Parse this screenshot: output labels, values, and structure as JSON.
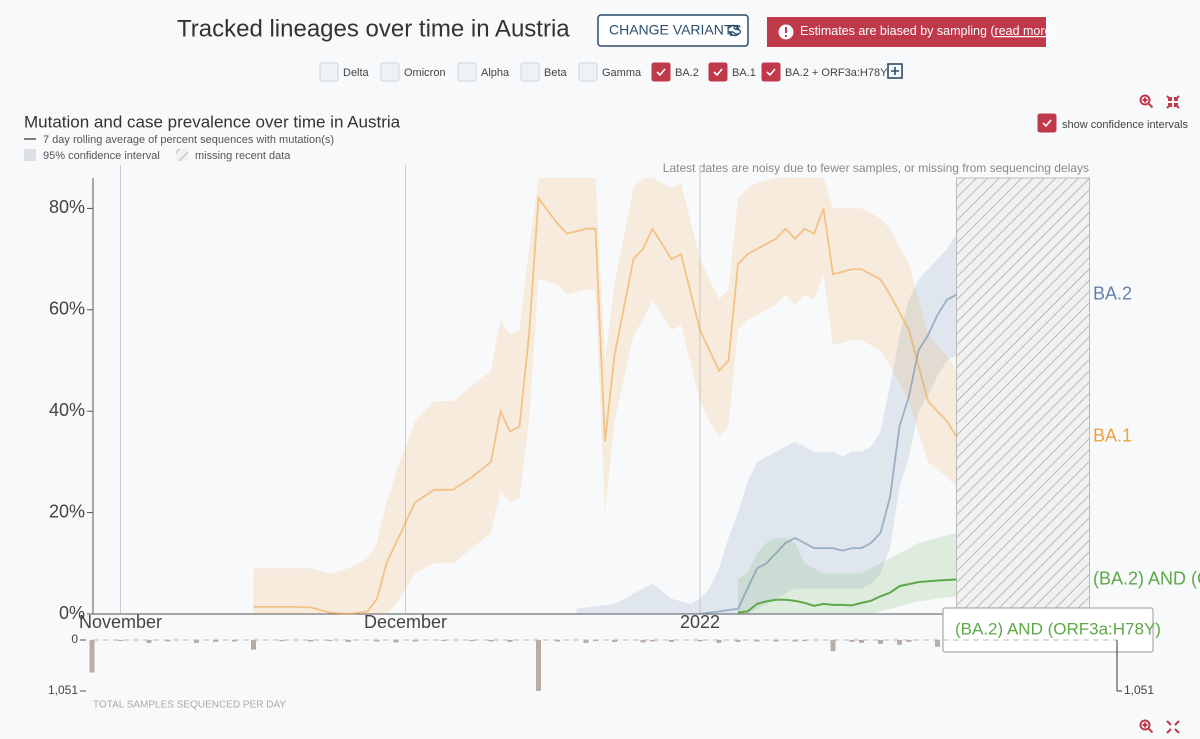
{
  "header": {
    "title": "Tracked lineages over time in Austria",
    "change_button": "CHANGE VARIANTS",
    "alert": {
      "text": "Estimates are biased by sampling (",
      "link": "read more",
      "close": ")"
    }
  },
  "variants": [
    {
      "label": "Delta",
      "checked": false
    },
    {
      "label": "Omicron",
      "checked": false
    },
    {
      "label": "Alpha",
      "checked": false
    },
    {
      "label": "Beta",
      "checked": false
    },
    {
      "label": "Gamma",
      "checked": false
    },
    {
      "label": "BA.2",
      "checked": true
    },
    {
      "label": "BA.1",
      "checked": true
    },
    {
      "label": "BA.2 + ORF3a:H78Y",
      "checked": true
    }
  ],
  "chart_data": [
    {
      "type": "line",
      "title": "Mutation and case prevalence over time in Austria",
      "legend": {
        "line": "7 day rolling average of percent sequences with mutation(s)",
        "band": "95% confidence interval",
        "missing": "missing recent data"
      },
      "annotation": "Latest dates are noisy due to fewer samples, or missing from sequencing delays",
      "show_ci": true,
      "show_ci_label": "show confidence intervals",
      "xlim": [
        -3,
        102
      ],
      "xticks": [
        {
          "value": 0,
          "label": "November"
        },
        {
          "value": 30,
          "label": "December"
        },
        {
          "value": 61,
          "label": "2022"
        }
      ],
      "ylim": [
        0,
        86
      ],
      "yticks": [
        {
          "value": 0,
          "label": "0%"
        },
        {
          "value": 20,
          "label": "20%"
        },
        {
          "value": 40,
          "label": "40%"
        },
        {
          "value": 60,
          "label": "60%"
        },
        {
          "value": 80,
          "label": "80%"
        }
      ],
      "series": [
        {
          "name": "BA.2",
          "color": "#6482a8",
          "x": [
            48,
            50,
            52,
            54,
            56,
            58,
            60,
            61,
            62,
            63,
            64,
            65,
            66,
            67,
            68,
            70,
            71,
            72,
            73,
            75,
            76,
            77,
            78,
            79,
            80,
            81,
            82,
            83,
            84,
            85,
            86,
            87,
            88
          ],
          "values": [
            null,
            null,
            null,
            null,
            null,
            null,
            null,
            0,
            0.3,
            0.5,
            0.8,
            1,
            5,
            9,
            10,
            14,
            15,
            14,
            13,
            13,
            12.5,
            13,
            13,
            14,
            16,
            23,
            37,
            43,
            52,
            55,
            59,
            62,
            63
          ],
          "ci_lower": [
            0,
            0,
            0,
            0,
            0,
            0,
            0,
            0,
            0,
            0,
            0,
            0,
            0,
            1,
            2,
            4,
            5,
            5,
            5,
            5,
            5,
            5,
            5,
            6,
            8,
            13,
            25,
            31,
            40,
            43,
            47,
            50,
            51
          ],
          "ci_upper": [
            1,
            1.5,
            2,
            4,
            6,
            3,
            2,
            3,
            5,
            9,
            15,
            20,
            26,
            30,
            31,
            33,
            34,
            33,
            32,
            32,
            31,
            32,
            32,
            33,
            36,
            45,
            55,
            62,
            66,
            68,
            70,
            72,
            75
          ]
        },
        {
          "name": "BA.1",
          "color": "#f0a040",
          "x": [
            14,
            16,
            18,
            20,
            22,
            24,
            26,
            27,
            28,
            29,
            30,
            31,
            33,
            35,
            37,
            39,
            40,
            41,
            42,
            43,
            44,
            46,
            47,
            49,
            50,
            51,
            52,
            54,
            55,
            56,
            58,
            59,
            61,
            62,
            63,
            64,
            65,
            66,
            67,
            69,
            70,
            71,
            72,
            73,
            74,
            75,
            77,
            78,
            80,
            81,
            83,
            84,
            85,
            87,
            88
          ],
          "values": [
            1.4,
            1.4,
            1.4,
            1.3,
            0.3,
            0,
            0.5,
            3,
            10,
            14,
            18,
            22,
            24.5,
            24.5,
            27,
            30,
            40,
            36,
            37,
            55,
            82,
            77,
            75,
            76,
            76,
            34,
            51,
            70,
            72,
            76,
            70,
            71,
            56,
            52,
            48,
            50,
            69,
            71,
            72,
            74,
            76,
            74,
            76,
            75,
            80,
            67,
            68,
            68,
            66,
            63,
            56,
            49,
            42,
            38,
            35
          ],
          "ci_lower": [
            0,
            0,
            0,
            0,
            0,
            0,
            0,
            0,
            0,
            2,
            5,
            8,
            10,
            10,
            13,
            16,
            24,
            22,
            23,
            38,
            66,
            65,
            63,
            64,
            64,
            20,
            38,
            55,
            58,
            62,
            56,
            57,
            42,
            38,
            35,
            37,
            56,
            58,
            59,
            61,
            63,
            61,
            63,
            62,
            67,
            53,
            54,
            54,
            52,
            49,
            42,
            36,
            30,
            27,
            25
          ],
          "ci_upper": [
            9,
            9,
            9,
            9,
            8,
            9,
            11,
            14,
            22,
            28,
            33,
            38,
            42,
            42,
            45,
            48,
            58,
            55,
            56,
            72,
            86,
            86,
            86,
            86,
            86,
            50,
            65,
            84,
            86,
            86,
            84,
            85,
            70,
            66,
            62,
            64,
            82,
            84,
            85,
            86,
            86,
            86,
            86,
            86,
            86,
            80,
            80,
            80,
            78,
            76,
            69,
            62,
            55,
            51,
            48
          ]
        },
        {
          "name": "(BA.2) AND (ORF3a:H78Y)",
          "color": "#5ea84a",
          "x": [
            65,
            66,
            67,
            68,
            69,
            70,
            71,
            72,
            73,
            74,
            75,
            76,
            77,
            78,
            79,
            80,
            81,
            82,
            83,
            84,
            86,
            88
          ],
          "values": [
            0.3,
            0.5,
            2,
            2.5,
            2.8,
            2.8,
            2.6,
            2.2,
            1.6,
            2,
            1.8,
            1.8,
            1.7,
            2.2,
            2.6,
            3.5,
            4.2,
            5.5,
            5.9,
            6.3,
            6.6,
            6.8
          ],
          "ci_lower": [
            0,
            0,
            0,
            0,
            0,
            0,
            0,
            0,
            0,
            0,
            0,
            0,
            0,
            0,
            0,
            0.5,
            1,
            1.5,
            2,
            2.5,
            3,
            3.5
          ],
          "ci_upper": [
            7,
            8,
            12,
            14,
            15,
            15,
            14,
            10,
            9,
            8,
            8,
            8,
            8,
            8,
            9,
            10,
            11,
            12,
            13,
            14,
            15,
            16
          ]
        }
      ]
    },
    {
      "type": "bar",
      "title": "TOTAL SAMPLES SEQUENCED PER DAY",
      "color": "#b8aca6",
      "xlim": [
        -3,
        102
      ],
      "x": [
        -3,
        0,
        3,
        5,
        8,
        10,
        12,
        14,
        17,
        20,
        22,
        24,
        27,
        29,
        31,
        34,
        37,
        39,
        41,
        44,
        46,
        49,
        50,
        52,
        55,
        56,
        58,
        61,
        63,
        65,
        67,
        69,
        71,
        72,
        75,
        77,
        78,
        80,
        82,
        83,
        86
      ],
      "values": [
        670,
        20,
        60,
        30,
        60,
        40,
        30,
        200,
        25,
        30,
        20,
        40,
        30,
        50,
        30,
        20,
        25,
        30,
        40,
        1051,
        30,
        60,
        20,
        40,
        50,
        30,
        40,
        30,
        60,
        40,
        30,
        30,
        30,
        20,
        230,
        40,
        60,
        80,
        100,
        40,
        140
      ],
      "ylim": [
        0,
        1051
      ],
      "yticks": [
        0,
        {
          "value": 1051,
          "label": "1,051"
        }
      ]
    }
  ]
}
